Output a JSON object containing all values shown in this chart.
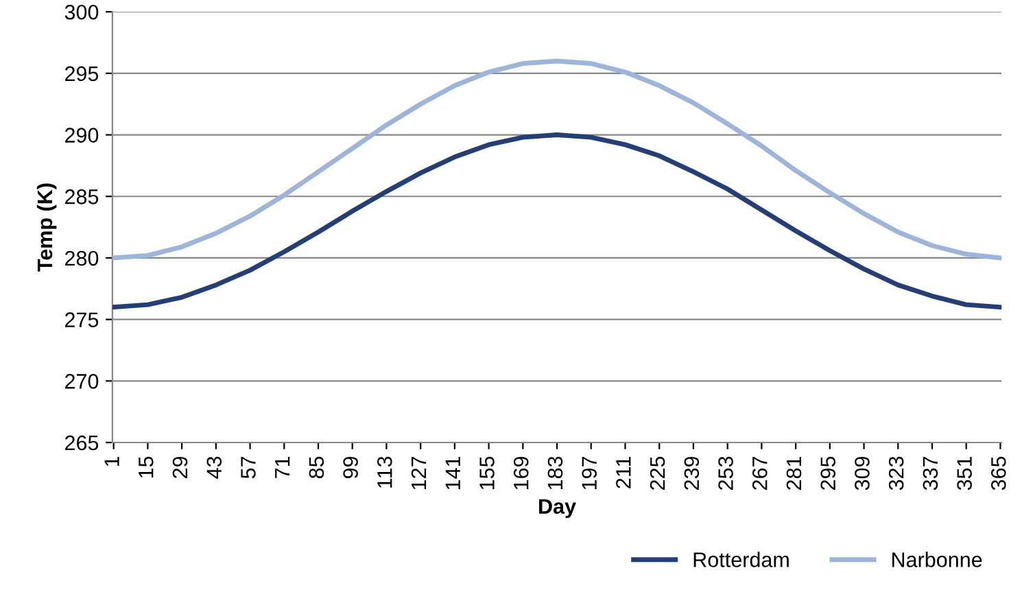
{
  "chart_data": {
    "type": "line",
    "xlabel": "Day",
    "ylabel": "Temp (K)",
    "x": [
      1,
      15,
      29,
      43,
      57,
      71,
      85,
      99,
      113,
      127,
      141,
      155,
      169,
      183,
      197,
      211,
      225,
      239,
      253,
      267,
      281,
      295,
      309,
      323,
      337,
      351,
      365
    ],
    "series": [
      {
        "name": "Rotterdam",
        "color": "#243f78",
        "values": [
          276.0,
          276.2,
          276.8,
          277.8,
          279.0,
          280.5,
          282.1,
          283.8,
          285.4,
          286.9,
          288.2,
          289.2,
          289.8,
          290.0,
          289.8,
          289.2,
          288.3,
          287.0,
          285.6,
          283.9,
          282.2,
          280.6,
          279.1,
          277.8,
          276.9,
          276.2,
          276.0
        ]
      },
      {
        "name": "Narbonne",
        "color": "#9db4db",
        "values": [
          280.0,
          280.2,
          280.9,
          282.0,
          283.4,
          285.1,
          287.0,
          288.9,
          290.8,
          292.5,
          294.0,
          295.1,
          295.8,
          296.0,
          295.8,
          295.1,
          294.0,
          292.6,
          290.9,
          289.1,
          287.1,
          285.3,
          283.6,
          282.1,
          281.0,
          280.3,
          280.0
        ]
      }
    ],
    "xlim": [
      0.5,
      365.5
    ],
    "xticks": [
      1,
      15,
      29,
      43,
      57,
      71,
      85,
      99,
      113,
      127,
      141,
      155,
      169,
      183,
      197,
      211,
      225,
      239,
      253,
      267,
      281,
      295,
      309,
      323,
      337,
      351,
      365
    ],
    "ylim": [
      265,
      300
    ],
    "yticks": [
      265,
      270,
      275,
      280,
      285,
      290,
      295,
      300
    ],
    "grid": "y",
    "legend": "bottom right",
    "marker": "none",
    "line_style": "solid"
  }
}
